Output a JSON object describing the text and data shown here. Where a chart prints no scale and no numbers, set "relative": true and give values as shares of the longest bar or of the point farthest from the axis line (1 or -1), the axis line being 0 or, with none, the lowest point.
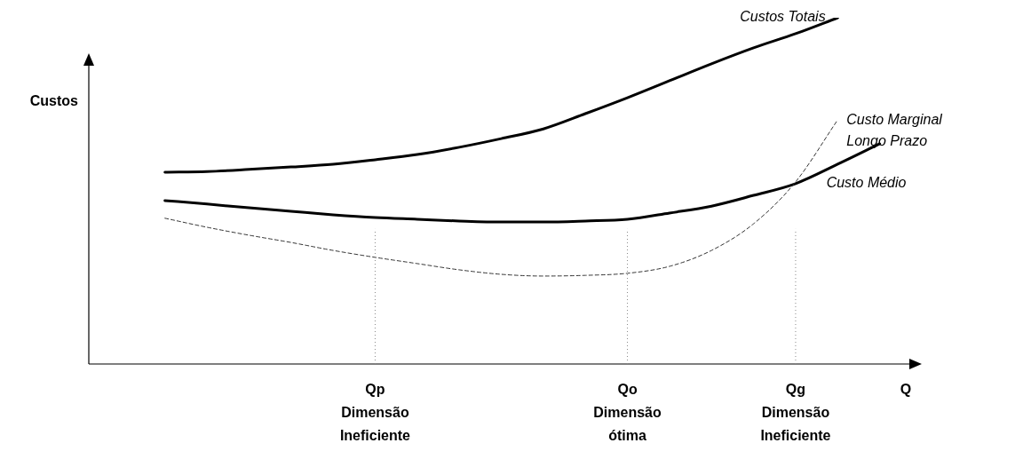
{
  "chart_data": {
    "type": "line",
    "relative": true,
    "xlabel": "Q",
    "ylabel": "Custos",
    "legend": false,
    "marker": "none",
    "categories": [
      null,
      null,
      null,
      null,
      null,
      "Qp\nDimensão\nIneficiente",
      null,
      null,
      null,
      null,
      null,
      "Qo\nDimensão\nótima",
      null,
      null,
      null,
      "Qg\nDimensão\nIneficiente",
      null,
      null
    ],
    "ref_lines": [
      {
        "axis": "x",
        "value": "Qp\nDimensão\nIneficiente",
        "color": "#888888",
        "line_style": "dotted"
      },
      {
        "axis": "x",
        "value": "Qo\nDimensão\nótima",
        "color": "#888888",
        "line_style": "dotted"
      },
      {
        "axis": "x",
        "value": "Qg\nDimensão\nIneficiente",
        "color": "#888888",
        "line_style": "dotted"
      }
    ],
    "series": [
      {
        "name": "Custos Totais",
        "color": "#000000",
        "line_style": "solid",
        "values": [
          0.554,
          0.556,
          0.562,
          0.569,
          0.577,
          0.59,
          0.605,
          0.626,
          0.651,
          0.679,
          0.723,
          0.769,
          0.818,
          0.867,
          0.913,
          0.954,
          1,
          null
        ]
      },
      {
        "name": "Custo Marginal\nLongo Prazo",
        "color": "#333333",
        "line_style": "dashed",
        "values": [
          0.421,
          0.395,
          0.372,
          0.351,
          0.328,
          0.308,
          0.29,
          0.272,
          0.259,
          0.254,
          0.256,
          0.262,
          0.282,
          0.328,
          0.405,
          0.526,
          0.705,
          null
        ]
      },
      {
        "name": "Custo Médio",
        "color": "#000000",
        "line_style": "solid",
        "values": [
          0.472,
          0.462,
          0.451,
          0.441,
          0.431,
          0.423,
          0.418,
          0.413,
          0.41,
          0.41,
          0.413,
          0.418,
          0.436,
          0.456,
          0.487,
          0.521,
          0.577,
          0.636
        ]
      }
    ]
  }
}
